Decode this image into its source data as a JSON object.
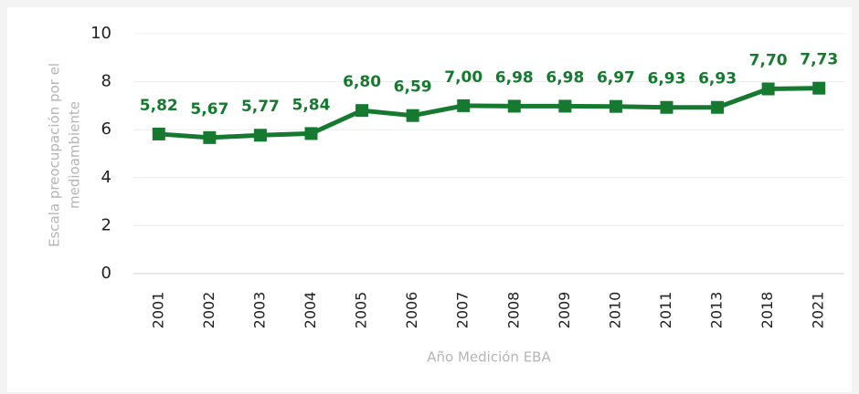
{
  "chart_data": {
    "type": "line",
    "categories": [
      "2001",
      "2002",
      "2003",
      "2004",
      "2005",
      "2006",
      "2007",
      "2008",
      "2009",
      "2010",
      "2011",
      "2013",
      "2018",
      "2021"
    ],
    "series": [
      {
        "color": "#157a30",
        "values": [
          5.82,
          5.67,
          5.77,
          5.84,
          6.8,
          6.59,
          7.0,
          6.98,
          6.98,
          6.97,
          6.93,
          6.93,
          7.7,
          7.73
        ],
        "value_labels": [
          "5,82",
          "5,67",
          "5,77",
          "5,84",
          "6,80",
          "6,59",
          "7,00",
          "6,98",
          "6,98",
          "6,97",
          "6,93",
          "6,93",
          "7,70",
          "7,73"
        ]
      }
    ],
    "ylim": [
      0,
      10
    ],
    "yticks": [
      0,
      2,
      4,
      6,
      8,
      10
    ],
    "grid": true,
    "ylabel": [
      "Escala preocupación por el",
      "medioambiente"
    ],
    "xlabel": "Año Medición EBA"
  }
}
